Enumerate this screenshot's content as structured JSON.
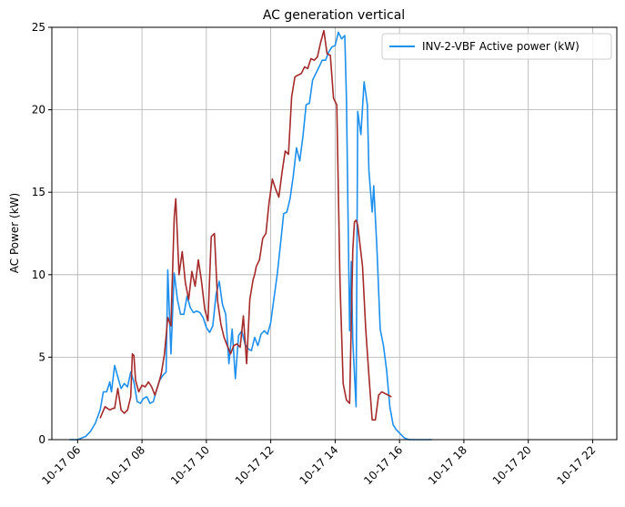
{
  "chart_data": {
    "type": "line",
    "title": "AC generation vertical",
    "xlabel": "",
    "ylabel": "AC Power (kW)",
    "xlim": [
      5.2,
      22.75
    ],
    "ylim": [
      0,
      25
    ],
    "x_ticks": [
      6,
      8,
      10,
      12,
      14,
      16,
      18,
      20,
      22
    ],
    "x_tick_labels": [
      "10-17 06",
      "10-17 08",
      "10-17 10",
      "10-17 12",
      "10-17 14",
      "10-17 16",
      "10-17 18",
      "10-17 20",
      "10-17 22"
    ],
    "y_ticks": [
      0,
      5,
      10,
      15,
      20,
      25
    ],
    "y_tick_labels": [
      "0",
      "5",
      "10",
      "15",
      "20",
      "25"
    ],
    "grid": true,
    "legend_position": "top-right",
    "colors": {
      "series_0": "#1e90ee",
      "series_1": "#a52a2a"
    },
    "series": [
      {
        "name": "INV-2-VBF Active power (kW)",
        "x": [
          5.75,
          6.0,
          6.25,
          6.4,
          6.55,
          6.7,
          6.8,
          6.9,
          7.0,
          7.05,
          7.15,
          7.25,
          7.35,
          7.45,
          7.55,
          7.65,
          7.75,
          7.85,
          7.95,
          8.05,
          8.15,
          8.25,
          8.35,
          8.45,
          8.55,
          8.65,
          8.75,
          8.8,
          8.9,
          9.0,
          9.1,
          9.2,
          9.3,
          9.4,
          9.5,
          9.6,
          9.7,
          9.8,
          9.9,
          10.0,
          10.1,
          10.2,
          10.3,
          10.4,
          10.5,
          10.6,
          10.7,
          10.8,
          10.9,
          11.0,
          11.1,
          11.2,
          11.3,
          11.4,
          11.5,
          11.6,
          11.7,
          11.8,
          11.9,
          12.0,
          12.1,
          12.2,
          12.3,
          12.4,
          12.5,
          12.6,
          12.7,
          12.8,
          12.9,
          13.0,
          13.1,
          13.2,
          13.3,
          13.4,
          13.5,
          13.6,
          13.7,
          13.8,
          13.9,
          14.0,
          14.1,
          14.2,
          14.3,
          14.35,
          14.45,
          14.5,
          14.55,
          14.65,
          14.7,
          14.8,
          14.9,
          15.0,
          15.05,
          15.15,
          15.2,
          15.3,
          15.4,
          15.5,
          15.6,
          15.7,
          15.8,
          15.9,
          16.0,
          16.15,
          16.3,
          16.5,
          16.7,
          17.0
        ],
        "y": [
          0.0,
          0.0,
          0.2,
          0.5,
          1.0,
          1.8,
          2.9,
          2.9,
          3.5,
          2.9,
          4.5,
          3.8,
          3.1,
          3.4,
          3.2,
          4.1,
          3.5,
          2.3,
          2.2,
          2.5,
          2.6,
          2.2,
          2.3,
          3.0,
          3.6,
          3.9,
          4.1,
          10.3,
          5.2,
          10.1,
          8.5,
          7.6,
          7.6,
          8.7,
          8.0,
          7.7,
          7.8,
          7.7,
          7.4,
          6.8,
          6.5,
          6.9,
          8.8,
          9.6,
          8.2,
          7.6,
          4.6,
          6.7,
          3.7,
          6.3,
          6.6,
          5.8,
          5.5,
          5.4,
          6.2,
          5.7,
          6.4,
          6.6,
          6.4,
          7.1,
          8.6,
          10.0,
          11.8,
          13.7,
          13.8,
          14.6,
          16.0,
          17.7,
          16.9,
          18.4,
          20.3,
          20.4,
          21.8,
          22.2,
          22.6,
          23.0,
          23.0,
          23.5,
          23.8,
          23.9,
          24.7,
          24.3,
          24.5,
          20.7,
          6.6,
          10.8,
          6.0,
          2.0,
          19.9,
          18.5,
          21.7,
          20.3,
          16.3,
          13.8,
          15.4,
          11.5,
          6.7,
          5.7,
          4.2,
          2.0,
          0.9,
          0.6,
          0.4,
          0.1,
          0.0,
          0.0,
          0.0,
          0.0
        ]
      },
      {
        "name": "",
        "x": [
          6.7,
          6.85,
          7.0,
          7.1,
          7.15,
          7.25,
          7.35,
          7.45,
          7.55,
          7.65,
          7.7,
          7.75,
          7.8,
          7.9,
          8.0,
          8.1,
          8.2,
          8.3,
          8.4,
          8.5,
          8.6,
          8.7,
          8.8,
          8.9,
          9.0,
          9.05,
          9.15,
          9.25,
          9.35,
          9.45,
          9.55,
          9.65,
          9.75,
          9.85,
          9.95,
          10.05,
          10.15,
          10.25,
          10.35,
          10.45,
          10.55,
          10.65,
          10.75,
          10.85,
          10.95,
          11.05,
          11.15,
          11.25,
          11.35,
          11.45,
          11.5,
          11.55,
          11.65,
          11.75,
          11.85,
          11.95,
          12.05,
          12.15,
          12.25,
          12.35,
          12.45,
          12.55,
          12.65,
          12.75,
          12.85,
          12.95,
          13.05,
          13.15,
          13.25,
          13.35,
          13.45,
          13.55,
          13.65,
          13.75,
          13.85,
          13.95,
          14.05,
          14.15,
          14.25,
          14.35,
          14.45,
          14.55,
          14.6,
          14.65,
          14.7,
          14.75,
          14.85,
          14.95,
          15.05,
          15.15,
          15.25,
          15.35,
          15.45,
          15.55,
          15.65,
          15.75
        ],
        "y": [
          1.3,
          2.0,
          1.8,
          1.9,
          1.9,
          3.1,
          1.8,
          1.6,
          1.8,
          2.6,
          5.2,
          5.1,
          3.6,
          2.9,
          3.3,
          3.2,
          3.5,
          3.2,
          2.7,
          3.3,
          4.0,
          5.2,
          7.4,
          6.9,
          13.5,
          14.6,
          10.0,
          11.4,
          9.5,
          8.5,
          10.2,
          9.3,
          10.9,
          9.6,
          7.9,
          7.2,
          12.3,
          12.5,
          8.4,
          7.0,
          6.2,
          5.7,
          5.2,
          5.7,
          5.8,
          5.6,
          7.5,
          4.6,
          8.5,
          9.7,
          10.0,
          10.5,
          10.9,
          12.2,
          12.5,
          14.4,
          15.8,
          15.2,
          14.7,
          16.2,
          17.5,
          17.3,
          20.8,
          22.0,
          22.1,
          22.2,
          22.6,
          22.5,
          23.1,
          23.0,
          23.2,
          24.1,
          24.8,
          23.4,
          23.3,
          20.7,
          20.3,
          9.6,
          3.4,
          2.4,
          2.2,
          11.5,
          13.2,
          13.3,
          13.0,
          12.2,
          10.5,
          6.7,
          3.9,
          1.2,
          1.2,
          2.7,
          2.9,
          2.8,
          2.7,
          2.6
        ]
      }
    ]
  }
}
